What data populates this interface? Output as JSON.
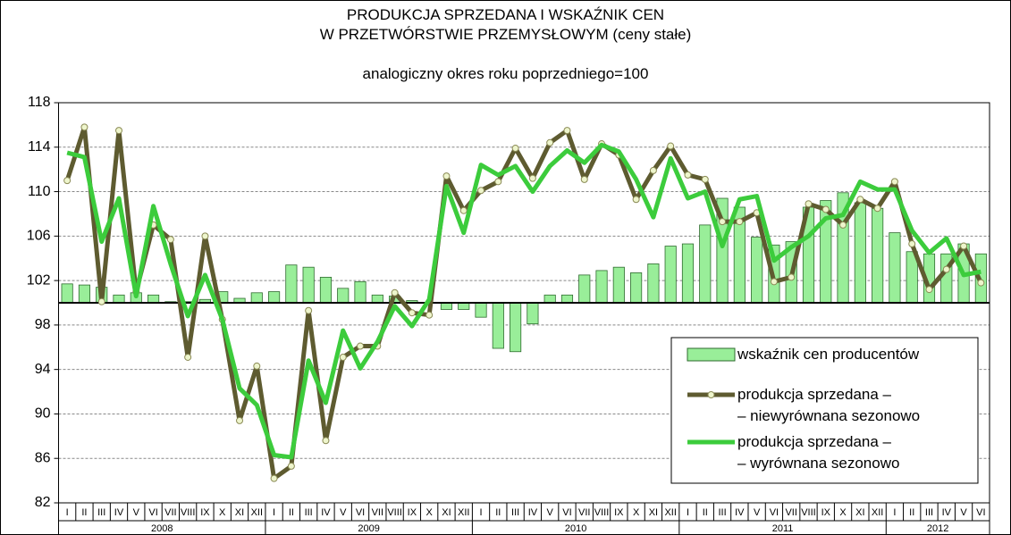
{
  "chart_data": {
    "type": "combo",
    "title": "PRODUKCJA SPRZEDANA I WSKAŹNIK CEN\nW PRZETWÓRSTWIE PRZEMYSŁOWYM (ceny stałe)",
    "subtitle": "analogiczny okres roku poprzedniego=100",
    "categories": [
      "I",
      "II",
      "III",
      "IV",
      "V",
      "VI",
      "VII",
      "VIII",
      "IX",
      "X",
      "XI",
      "XII",
      "I",
      "II",
      "III",
      "IV",
      "V",
      "VI",
      "VII",
      "VIII",
      "IX",
      "X",
      "XI",
      "XII",
      "I",
      "II",
      "III",
      "IV",
      "V",
      "VI",
      "VII",
      "VIII",
      "IX",
      "X",
      "XI",
      "XII",
      "I",
      "II",
      "III",
      "IV",
      "V",
      "VI",
      "VII",
      "VIII",
      "IX",
      "X",
      "XI",
      "XII",
      "I",
      "II",
      "III",
      "IV",
      "V",
      "VI"
    ],
    "years": [
      "2008",
      "2009",
      "2010",
      "2011",
      "2012"
    ],
    "ylim": [
      82,
      118
    ],
    "yticks": [
      82,
      86,
      90,
      94,
      98,
      102,
      106,
      110,
      114,
      118
    ],
    "grid": true,
    "bar_base": 100,
    "series": [
      {
        "name": "wskaźnik cen producentów",
        "type": "bar",
        "color": "#99ee99",
        "values": [
          101.7,
          101.6,
          101.4,
          100.7,
          100.9,
          100.7,
          100.1,
          100.1,
          100.3,
          101.0,
          100.4,
          100.9,
          101.0,
          103.4,
          103.2,
          102.3,
          101.3,
          101.9,
          100.7,
          100.6,
          100.2,
          100.0,
          99.4,
          99.4,
          98.7,
          95.9,
          95.6,
          98.1,
          100.7,
          100.7,
          102.5,
          102.9,
          103.2,
          102.7,
          103.5,
          105.1,
          105.3,
          107.0,
          109.4,
          108.6,
          105.9,
          105.2,
          105.5,
          108.6,
          109.2,
          109.9,
          109.0,
          108.5,
          106.3,
          104.6,
          104.4,
          104.4,
          105.3,
          104.4
        ]
      },
      {
        "name": "produkcja sprzedana –\n– niewyrównana sezonowo",
        "type": "line",
        "marker": true,
        "color": "#5e5b30",
        "values": [
          111.0,
          115.8,
          100.1,
          115.5,
          101.0,
          107.0,
          105.7,
          95.1,
          106.0,
          98.5,
          89.4,
          94.3,
          84.2,
          85.3,
          99.3,
          87.6,
          95.1,
          96.1,
          96.1,
          100.9,
          99.1,
          98.9,
          111.4,
          108.3,
          110.1,
          110.9,
          113.9,
          111.2,
          114.4,
          115.5,
          111.1,
          114.3,
          113.3,
          109.3,
          111.9,
          114.1,
          111.5,
          111.1,
          107.3,
          107.3,
          108.1,
          101.9,
          102.3,
          108.9,
          108.4,
          107.0,
          109.3,
          108.5,
          110.9,
          105.3,
          101.2,
          103.0,
          105.1,
          101.8
        ]
      },
      {
        "name": "produkcja sprzedana –\n– wyrównana sezonowo",
        "type": "line",
        "marker": false,
        "color": "#3ccc3c",
        "values": [
          113.5,
          113.1,
          105.5,
          109.4,
          100.6,
          108.7,
          103.5,
          98.8,
          102.5,
          98.5,
          92.3,
          90.8,
          86.3,
          86.1,
          94.8,
          91.0,
          97.5,
          94.1,
          96.5,
          99.7,
          97.9,
          100.3,
          110.5,
          106.3,
          112.4,
          111.5,
          112.3,
          110.0,
          112.3,
          113.7,
          112.6,
          114.2,
          113.6,
          111.1,
          107.7,
          113.0,
          109.4,
          110.0,
          105.1,
          109.3,
          109.6,
          103.8,
          105.0,
          106.0,
          107.6,
          107.9,
          110.9,
          110.2,
          110.2,
          106.5,
          104.5,
          105.8,
          102.5,
          102.8
        ]
      }
    ]
  }
}
